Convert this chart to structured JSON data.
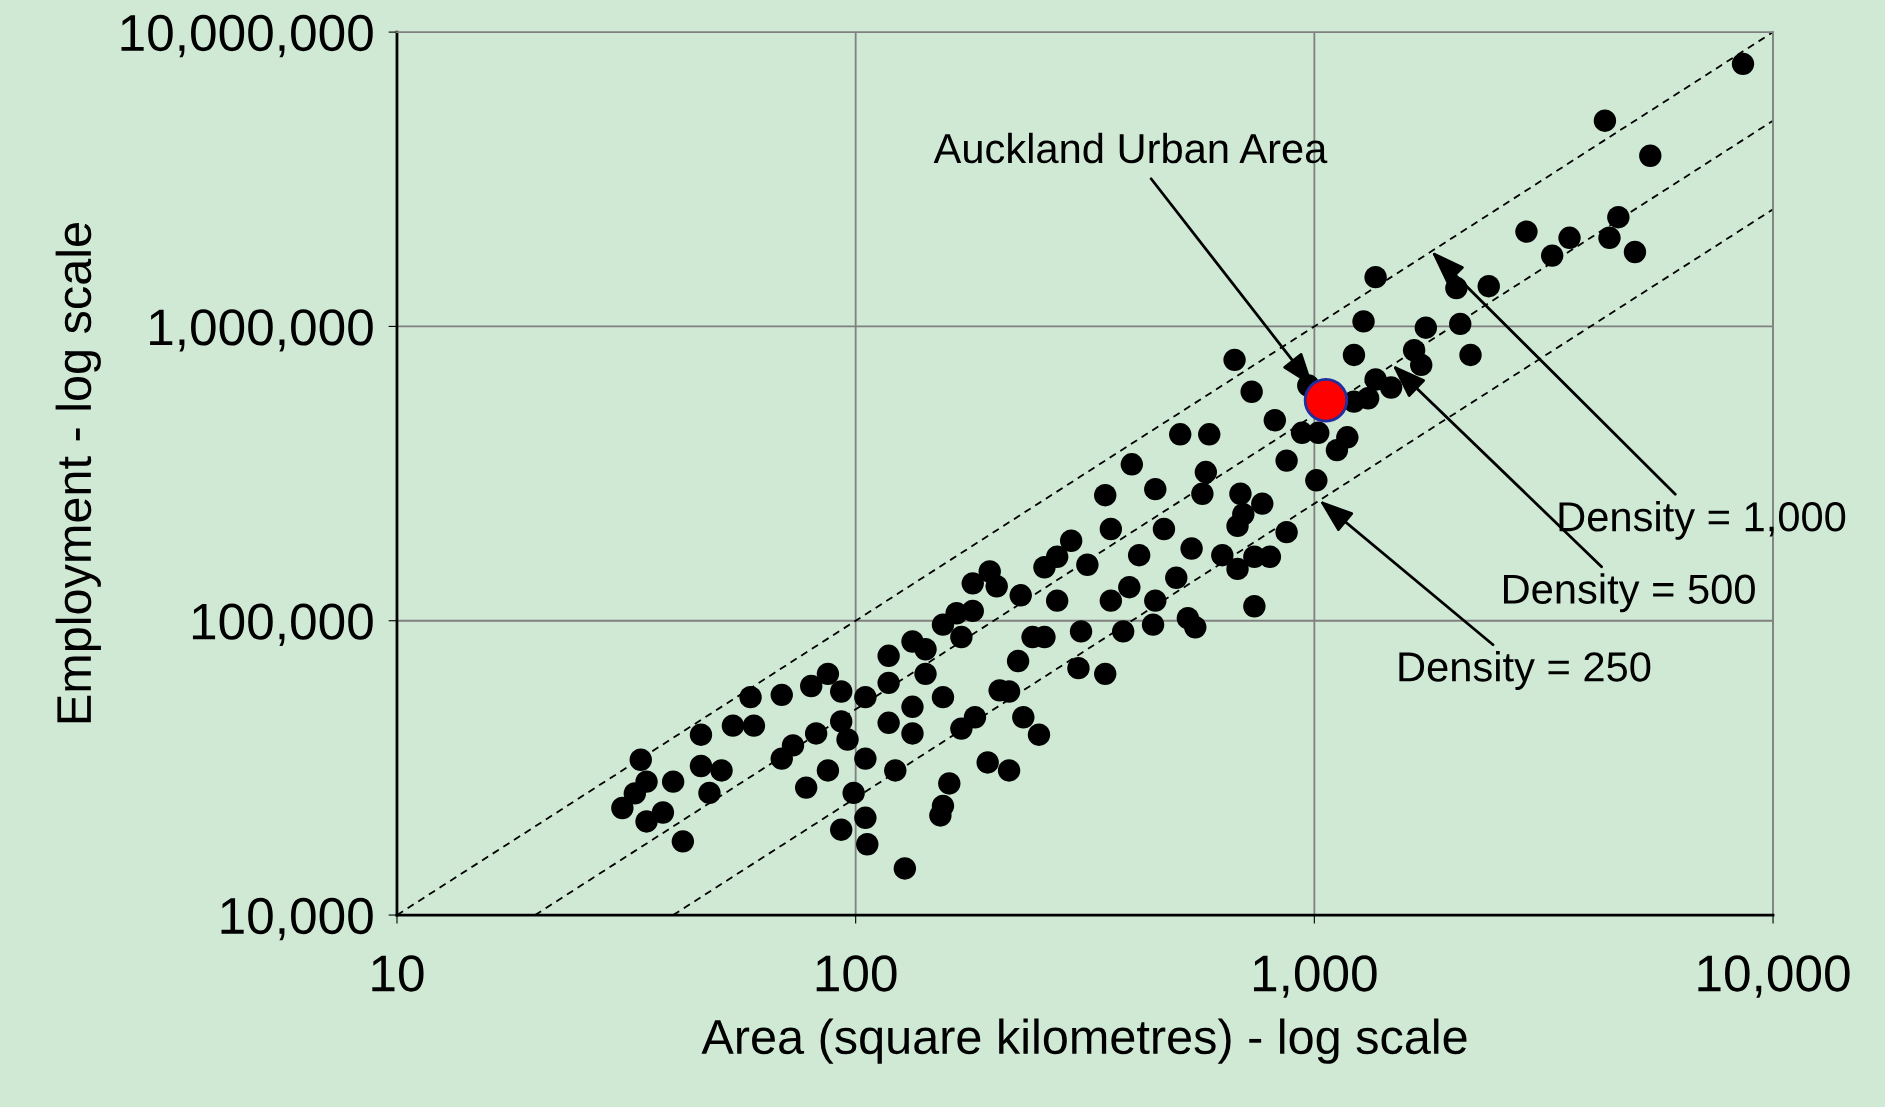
{
  "chart_data": {
    "type": "scatter",
    "xlabel": "Area (square kilometres) - log scale",
    "ylabel": "Employment - log scale",
    "log": "xy",
    "grid": true,
    "legend": false,
    "marker": "circle",
    "xlim": [
      10,
      10000
    ],
    "ylim": [
      10000,
      10000000
    ],
    "xticks": [
      10,
      100,
      {
        "value": 1000,
        "label": "1,000"
      },
      {
        "value": 10000,
        "label": "10,000"
      }
    ],
    "yticks": [
      {
        "value": 10000,
        "label": "10,000"
      },
      {
        "value": 100000,
        "label": "100,000"
      },
      {
        "value": 1000000,
        "label": "1,000,000"
      },
      {
        "value": 10000000,
        "label": "10,000,000"
      }
    ],
    "series": [
      {
        "color": "#000000",
        "x": [
          8600,
          4300,
          5400,
          1360,
          2900,
          3600,
          3300,
          4600,
          4400,
          5000,
          2040,
          2400,
          2080,
          2190,
          1750,
          1650,
          1710,
          1280,
          1220,
          670,
          730,
          1360,
          1470,
          1310,
          1220,
          1180,
          1010,
          820,
          870,
          940,
          1020,
          970,
          1120,
          510,
          590,
          580,
          400,
          450,
          570,
          690,
          700,
          770,
          680,
          870,
          740,
          800,
          740,
          530,
          550,
          680,
          630,
          470,
          540,
          500,
          350,
          360,
          295,
          415,
          395,
          450,
          360,
          445,
          383,
          350,
          306,
          258,
          275,
          229,
          243,
          203,
          180,
          196,
          170,
          155,
          142,
          226,
          251,
          232,
          206,
          182,
          216,
          194,
          170,
          155,
          160,
          142,
          133,
          118,
          118,
          122,
          155,
          153,
          128,
          106,
          105,
          105,
          99,
          93,
          87,
          87,
          80,
          69,
          60,
          69,
          54,
          59,
          51,
          46,
          48,
          42,
          38,
          35,
          34,
          33,
          31,
          35,
          40,
          133,
          78,
          82,
          93,
          73,
          96,
          105,
          118,
          46,
          93,
          133,
          166,
          180,
          275,
          320,
          258,
          310,
          216
        ],
        "values": [
          7800000,
          5000000,
          3800000,
          1470000,
          2100000,
          2000000,
          1740000,
          2350000,
          2000000,
          1790000,
          1350000,
          1370000,
          1020000,
          800000,
          990000,
          830000,
          740000,
          1040000,
          800000,
          770000,
          600000,
          660000,
          620000,
          570000,
          555000,
          420000,
          300000,
          480000,
          350000,
          435000,
          435000,
          630000,
          380000,
          430000,
          430000,
          320000,
          340000,
          280000,
          270000,
          270000,
          230000,
          250000,
          210000,
          200000,
          165000,
          165000,
          112000,
          102000,
          95000,
          150000,
          167000,
          205000,
          176000,
          140000,
          267000,
          205000,
          187000,
          167000,
          130000,
          117000,
          117000,
          97000,
          92000,
          66000,
          69000,
          152000,
          117000,
          122000,
          88000,
          131000,
          108000,
          147000,
          88000,
          97000,
          80000,
          73000,
          41000,
          47000,
          58000,
          47000,
          31000,
          33000,
          43000,
          55000,
          28000,
          66000,
          51000,
          76000,
          45000,
          31000,
          23500,
          21800,
          14400,
          17400,
          34000,
          21400,
          26000,
          19500,
          31000,
          66000,
          60000,
          56000,
          44000,
          34000,
          44000,
          55000,
          31000,
          41000,
          26000,
          17800,
          22300,
          28400,
          33700,
          25900,
          23100,
          20800,
          28400,
          41400,
          27100,
          41400,
          45500,
          37700,
          39500,
          55000,
          61500,
          32100,
          57500,
          85000,
          106000,
          134000,
          165000,
          155000,
          88000,
          92000,
          57500
        ]
      },
      {
        "color": "#ff0000",
        "x": [
          1060
        ],
        "values": [
          561000
        ]
      },
      {
        "type": "line",
        "color": "#000000",
        "line_style": "dashed",
        "marker": "none",
        "x": [
          10,
          10000
        ],
        "values": [
          10000,
          10000000
        ]
      },
      {
        "type": "line",
        "color": "#000000",
        "line_style": "dashed",
        "marker": "none",
        "x": [
          20,
          10000
        ],
        "values": [
          10000,
          5000000
        ]
      },
      {
        "type": "line",
        "color": "#000000",
        "line_style": "dashed",
        "marker": "none",
        "x": [
          40,
          10000
        ],
        "values": [
          10000,
          2500000
        ]
      }
    ],
    "annotations": [
      {
        "text": "Auckland Urban Area",
        "x": 995,
        "y": 622000
      },
      {
        "text": "Density = 1,000",
        "x": 1800,
        "y": 1800000
      },
      {
        "text": "Density = 500",
        "x": 1480,
        "y": 740000
      },
      {
        "text": "Density = 250",
        "x": 1026,
        "y": 256500
      }
    ]
  }
}
